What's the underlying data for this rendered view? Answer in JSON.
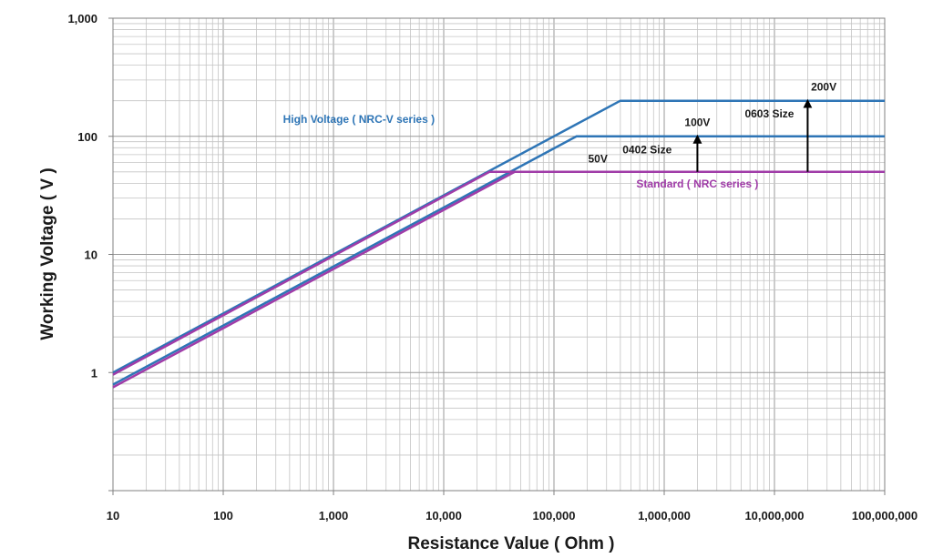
{
  "chart_data": {
    "type": "line",
    "title": "",
    "xlabel": "Resistance Value ( Ohm )",
    "ylabel": "Working Voltage ( V )",
    "x_scale": "log",
    "y_scale": "log",
    "xlim": [
      10,
      100000000
    ],
    "ylim": [
      0.1,
      1000
    ],
    "grid": true,
    "x_ticks": [
      10,
      100,
      1000,
      10000,
      100000,
      1000000,
      10000000,
      100000000
    ],
    "x_tick_labels": [
      "10",
      "100",
      "1,000",
      "10,000",
      "100,000",
      "1,000,000",
      "10,000,000",
      "100,000,000"
    ],
    "y_ticks": [
      1,
      10,
      100,
      1000
    ],
    "y_tick_labels": [
      "1",
      "10",
      "100",
      "1,000"
    ],
    "series": [
      {
        "color": "#2e75b6",
        "width": 2.5,
        "points": [
          [
            10,
            1.0
          ],
          [
            400000,
            200
          ],
          [
            100000000,
            200
          ]
        ]
      },
      {
        "color": "#2e75b6",
        "width": 2.5,
        "points": [
          [
            10,
            0.79
          ],
          [
            160000,
            100
          ],
          [
            100000000,
            100
          ]
        ]
      },
      {
        "color": "#a03ca8",
        "width": 2.5,
        "points": [
          [
            10,
            0.96
          ],
          [
            26000,
            50
          ],
          [
            100000000,
            50
          ]
        ]
      },
      {
        "color": "#a03ca8",
        "width": 2.5,
        "points": [
          [
            10,
            0.75
          ],
          [
            44000,
            50
          ]
        ]
      }
    ],
    "annotations": [
      {
        "text": "High Voltage ( NRC-V series )",
        "x": 1700,
        "y": 130,
        "color": "#2e75b6"
      },
      {
        "text": "Standard ( NRC series )",
        "x": 2000000,
        "y": 37,
        "color": "#a03ca8"
      },
      {
        "text": "200V",
        "x": 28000000,
        "y": 245,
        "color": "#1a1a1a"
      },
      {
        "text": "100V",
        "x": 2000000,
        "y": 122,
        "color": "#1a1a1a"
      },
      {
        "text": "50V",
        "x": 250000,
        "y": 60,
        "color": "#1a1a1a"
      },
      {
        "text": "0603 Size",
        "x": 9000000,
        "y": 145,
        "color": "#1a1a1a"
      },
      {
        "text": "0402 Size",
        "x": 700000,
        "y": 72,
        "color": "#1a1a1a"
      }
    ],
    "arrows": [
      {
        "x": 20000000,
        "from": 50,
        "to": 200,
        "label": "0603 Size"
      },
      {
        "x": 2000000,
        "from": 50,
        "to": 100,
        "label": "0402 Size"
      }
    ]
  }
}
